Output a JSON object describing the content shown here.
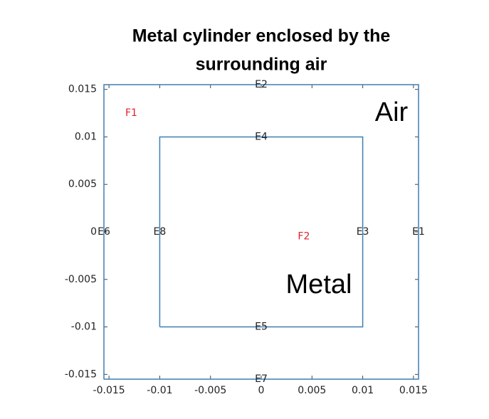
{
  "chart_data": {
    "type": "line",
    "title_lines": [
      "Metal cylinder enclosed by the",
      "surrounding air"
    ],
    "series": [
      {
        "color": "#3d7fb3",
        "x": [
          -0.0155,
          0.0155,
          0.0155,
          -0.0155,
          -0.0155
        ],
        "values": [
          -0.0155,
          -0.0155,
          0.0155,
          0.0155,
          -0.0155
        ]
      },
      {
        "color": "#3d7fb3",
        "x": [
          -0.01,
          0.01,
          0.01,
          -0.01,
          -0.01
        ],
        "values": [
          -0.01,
          -0.01,
          0.01,
          0.01,
          -0.01
        ]
      }
    ],
    "edge_labels": [
      {
        "text": "E1",
        "x": 0.0155,
        "y": 0
      },
      {
        "text": "E2",
        "x": 0,
        "y": 0.0155
      },
      {
        "text": "E3",
        "x": 0.01,
        "y": 0
      },
      {
        "text": "E4",
        "x": 0,
        "y": 0.01
      },
      {
        "text": "E5",
        "x": 0,
        "y": -0.01
      },
      {
        "text": "E6",
        "x": -0.0155,
        "y": 0
      },
      {
        "text": "E7",
        "x": 0,
        "y": -0.0155
      },
      {
        "text": "E8",
        "x": -0.01,
        "y": 0
      }
    ],
    "face_labels": [
      {
        "text": "F1",
        "x": -0.0128,
        "y": 0.0125
      },
      {
        "text": "F2",
        "x": 0.0042,
        "y": -0.0005
      }
    ],
    "label_color": "#e0202a",
    "annotations": [
      "Air",
      "Metal"
    ],
    "xlim": [
      -0.0155,
      0.0155
    ],
    "ylim": [
      -0.0155,
      0.0155
    ],
    "xticks": [
      -0.015,
      -0.01,
      -0.005,
      0,
      0.005,
      0.01,
      0.015
    ],
    "yticks": [
      -0.015,
      -0.01,
      -0.005,
      0,
      0.005,
      0.01,
      0.015
    ]
  }
}
